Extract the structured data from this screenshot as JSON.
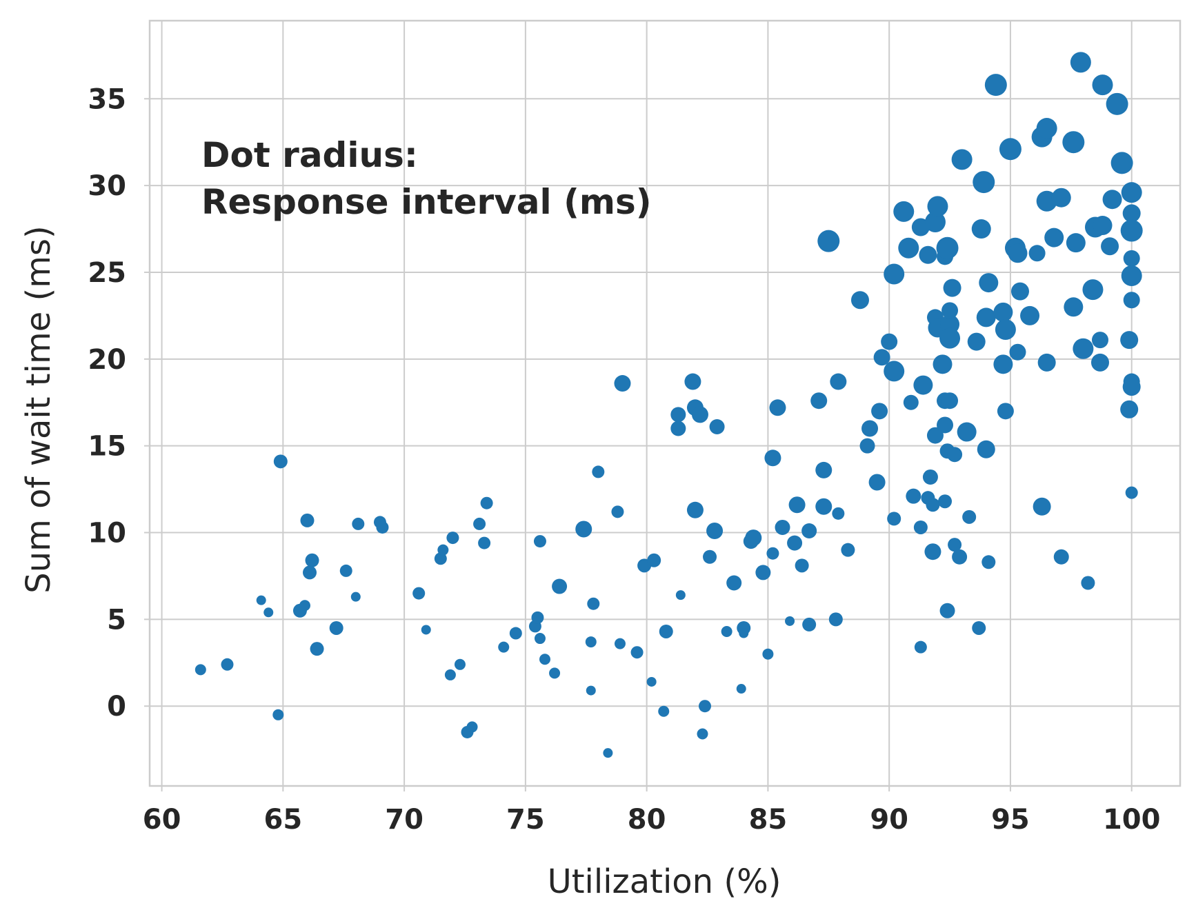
{
  "chart_data": {
    "type": "scatter",
    "xlabel": "Utilization (%)",
    "ylabel": "Sum of wait time (ms)",
    "annotation": [
      "Dot radius:",
      "Response interval (ms)"
    ],
    "xlim": [
      59.5,
      102
    ],
    "ylim": [
      -4.6,
      39.5
    ],
    "xticks": [
      "60",
      "65",
      "70",
      "75",
      "80",
      "85",
      "90",
      "95",
      "100"
    ],
    "yticks": [
      "0",
      "5",
      "10",
      "15",
      "20",
      "25",
      "30",
      "35"
    ],
    "grid": true,
    "legend": "none",
    "color": "#1f77b4",
    "size_encoding": "Response interval (ms)",
    "points": [
      [
        61.6,
        2.1,
        8
      ],
      [
        62.7,
        2.4,
        9
      ],
      [
        64.1,
        6.1,
        7
      ],
      [
        64.4,
        5.4,
        7
      ],
      [
        64.8,
        -0.5,
        8
      ],
      [
        64.9,
        14.1,
        10
      ],
      [
        65.7,
        5.5,
        10
      ],
      [
        65.9,
        5.8,
        8
      ],
      [
        66.0,
        10.7,
        10
      ],
      [
        66.1,
        7.7,
        10
      ],
      [
        66.2,
        8.4,
        10
      ],
      [
        66.4,
        3.3,
        10
      ],
      [
        67.2,
        4.5,
        10
      ],
      [
        67.6,
        7.8,
        9
      ],
      [
        68.0,
        6.3,
        7
      ],
      [
        68.1,
        10.5,
        9
      ],
      [
        69.0,
        10.6,
        9
      ],
      [
        69.1,
        10.3,
        9
      ],
      [
        70.6,
        6.5,
        9
      ],
      [
        70.9,
        4.4,
        7
      ],
      [
        71.5,
        8.5,
        9
      ],
      [
        71.6,
        9.0,
        8
      ],
      [
        71.9,
        1.8,
        8
      ],
      [
        72.0,
        9.7,
        9
      ],
      [
        72.3,
        2.4,
        8
      ],
      [
        72.6,
        -1.5,
        9
      ],
      [
        72.8,
        -1.2,
        8
      ],
      [
        73.1,
        10.5,
        9
      ],
      [
        73.3,
        9.4,
        9
      ],
      [
        73.4,
        11.7,
        9
      ],
      [
        74.1,
        3.4,
        8
      ],
      [
        74.6,
        4.2,
        9
      ],
      [
        75.4,
        4.6,
        9
      ],
      [
        75.5,
        5.1,
        9
      ],
      [
        75.6,
        3.9,
        8
      ],
      [
        75.6,
        9.5,
        9
      ],
      [
        75.8,
        2.7,
        8
      ],
      [
        76.2,
        1.9,
        8
      ],
      [
        76.4,
        6.9,
        11
      ],
      [
        77.4,
        10.2,
        12
      ],
      [
        77.7,
        3.7,
        8
      ],
      [
        77.7,
        0.9,
        7
      ],
      [
        77.8,
        5.9,
        9
      ],
      [
        78.0,
        13.5,
        9
      ],
      [
        78.4,
        -2.7,
        7
      ],
      [
        78.8,
        11.2,
        9
      ],
      [
        78.9,
        3.6,
        8
      ],
      [
        79.0,
        18.6,
        12
      ],
      [
        79.6,
        3.1,
        9
      ],
      [
        79.9,
        8.1,
        10
      ],
      [
        80.2,
        1.4,
        7
      ],
      [
        80.3,
        8.4,
        10
      ],
      [
        80.7,
        -0.3,
        8
      ],
      [
        80.8,
        4.3,
        10
      ],
      [
        81.3,
        16.8,
        11
      ],
      [
        81.3,
        16.0,
        11
      ],
      [
        81.4,
        6.4,
        7
      ],
      [
        81.9,
        18.7,
        12
      ],
      [
        82.0,
        11.3,
        12
      ],
      [
        82.0,
        17.2,
        12
      ],
      [
        82.2,
        16.8,
        12
      ],
      [
        82.3,
        -1.6,
        8
      ],
      [
        82.4,
        0.0,
        9
      ],
      [
        82.6,
        8.6,
        10
      ],
      [
        82.8,
        10.1,
        12
      ],
      [
        82.9,
        16.1,
        11
      ],
      [
        83.3,
        4.3,
        8
      ],
      [
        83.6,
        7.1,
        11
      ],
      [
        83.9,
        1.0,
        7
      ],
      [
        84.0,
        4.5,
        10
      ],
      [
        84.0,
        4.2,
        7
      ],
      [
        84.3,
        9.5,
        11
      ],
      [
        84.4,
        9.7,
        12
      ],
      [
        84.8,
        7.7,
        11
      ],
      [
        85.0,
        3.0,
        8
      ],
      [
        85.2,
        8.8,
        9
      ],
      [
        85.2,
        14.3,
        12
      ],
      [
        85.4,
        17.2,
        12
      ],
      [
        85.6,
        10.3,
        11
      ],
      [
        85.9,
        4.9,
        7
      ],
      [
        86.1,
        9.4,
        11
      ],
      [
        86.2,
        11.6,
        12
      ],
      [
        86.4,
        8.1,
        10
      ],
      [
        86.7,
        10.1,
        11
      ],
      [
        86.7,
        4.7,
        10
      ],
      [
        87.1,
        17.6,
        12
      ],
      [
        87.3,
        13.6,
        12
      ],
      [
        87.3,
        11.5,
        12
      ],
      [
        87.5,
        26.8,
        16
      ],
      [
        87.8,
        5.0,
        10
      ],
      [
        87.9,
        11.1,
        9
      ],
      [
        87.9,
        18.7,
        12
      ],
      [
        88.3,
        9.0,
        10
      ],
      [
        88.8,
        23.4,
        13
      ],
      [
        89.1,
        15.0,
        11
      ],
      [
        89.2,
        16.0,
        12
      ],
      [
        89.5,
        12.9,
        12
      ],
      [
        89.6,
        17.0,
        12
      ],
      [
        89.7,
        20.1,
        12
      ],
      [
        90.0,
        21.0,
        12
      ],
      [
        90.2,
        10.8,
        10
      ],
      [
        90.2,
        19.3,
        15
      ],
      [
        90.2,
        24.9,
        15
      ],
      [
        90.6,
        28.5,
        15
      ],
      [
        90.8,
        26.4,
        15
      ],
      [
        90.9,
        17.5,
        11
      ],
      [
        91.0,
        12.1,
        11
      ],
      [
        91.3,
        3.4,
        9
      ],
      [
        91.3,
        10.3,
        10
      ],
      [
        91.3,
        27.6,
        13
      ],
      [
        91.4,
        18.5,
        14
      ],
      [
        91.6,
        26.0,
        13
      ],
      [
        91.6,
        12.0,
        10
      ],
      [
        91.7,
        13.2,
        11
      ],
      [
        91.8,
        11.6,
        10
      ],
      [
        91.8,
        8.9,
        12
      ],
      [
        91.9,
        22.4,
        12
      ],
      [
        91.9,
        27.9,
        15
      ],
      [
        91.9,
        15.6,
        12
      ],
      [
        92.0,
        28.8,
        15
      ],
      [
        92.0,
        21.8,
        14
      ],
      [
        92.2,
        19.7,
        14
      ],
      [
        92.3,
        25.9,
        12
      ],
      [
        92.3,
        17.6,
        12
      ],
      [
        92.3,
        16.2,
        12
      ],
      [
        92.3,
        11.8,
        10
      ],
      [
        92.4,
        26.4,
        16
      ],
      [
        92.4,
        5.5,
        11
      ],
      [
        92.4,
        14.7,
        11
      ],
      [
        92.5,
        22.0,
        14
      ],
      [
        92.5,
        21.2,
        15
      ],
      [
        92.5,
        22.8,
        12
      ],
      [
        92.5,
        17.6,
        12
      ],
      [
        92.6,
        24.1,
        13
      ],
      [
        92.7,
        9.3,
        10
      ],
      [
        92.7,
        14.5,
        11
      ],
      [
        92.9,
        8.6,
        11
      ],
      [
        93.0,
        31.5,
        15
      ],
      [
        93.2,
        15.8,
        14
      ],
      [
        93.3,
        10.9,
        10
      ],
      [
        93.6,
        21.0,
        13
      ],
      [
        93.7,
        4.5,
        10
      ],
      [
        93.8,
        27.5,
        14
      ],
      [
        93.9,
        30.2,
        16
      ],
      [
        94.0,
        22.4,
        14
      ],
      [
        94.0,
        14.8,
        13
      ],
      [
        94.1,
        24.4,
        14
      ],
      [
        94.1,
        8.3,
        10
      ],
      [
        94.4,
        35.8,
        16
      ],
      [
        94.7,
        19.7,
        14
      ],
      [
        94.7,
        22.7,
        14
      ],
      [
        94.8,
        21.7,
        15
      ],
      [
        94.8,
        17.0,
        12
      ],
      [
        95.0,
        32.1,
        16
      ],
      [
        95.2,
        26.4,
        15
      ],
      [
        95.3,
        20.4,
        12
      ],
      [
        95.3,
        26.1,
        14
      ],
      [
        95.4,
        23.9,
        13
      ],
      [
        95.8,
        22.5,
        14
      ],
      [
        96.1,
        26.1,
        12
      ],
      [
        96.3,
        11.5,
        13
      ],
      [
        96.3,
        32.8,
        15
      ],
      [
        96.5,
        33.3,
        15
      ],
      [
        96.5,
        29.1,
        15
      ],
      [
        96.5,
        19.8,
        13
      ],
      [
        96.8,
        27.0,
        14
      ],
      [
        97.1,
        29.3,
        14
      ],
      [
        97.1,
        8.6,
        11
      ],
      [
        97.6,
        32.5,
        16
      ],
      [
        97.6,
        23.0,
        14
      ],
      [
        97.7,
        26.7,
        14
      ],
      [
        97.9,
        37.1,
        15
      ],
      [
        98.0,
        20.6,
        15
      ],
      [
        98.2,
        7.1,
        10
      ],
      [
        98.4,
        24.0,
        15
      ],
      [
        98.5,
        27.6,
        15
      ],
      [
        98.7,
        21.1,
        12
      ],
      [
        98.7,
        19.8,
        13
      ],
      [
        98.8,
        27.7,
        14
      ],
      [
        98.8,
        35.8,
        15
      ],
      [
        99.1,
        26.5,
        13
      ],
      [
        99.2,
        29.2,
        14
      ],
      [
        99.4,
        34.7,
        16
      ],
      [
        99.6,
        31.3,
        16
      ],
      [
        99.9,
        17.1,
        13
      ],
      [
        99.9,
        21.1,
        13
      ],
      [
        100.0,
        29.6,
        15
      ],
      [
        100.0,
        28.4,
        13
      ],
      [
        100.0,
        27.4,
        16
      ],
      [
        100.0,
        25.8,
        12
      ],
      [
        100.0,
        24.8,
        15
      ],
      [
        100.0,
        23.4,
        12
      ],
      [
        100.0,
        18.7,
        12
      ],
      [
        100.0,
        18.4,
        13
      ],
      [
        100.0,
        12.3,
        9
      ]
    ]
  }
}
